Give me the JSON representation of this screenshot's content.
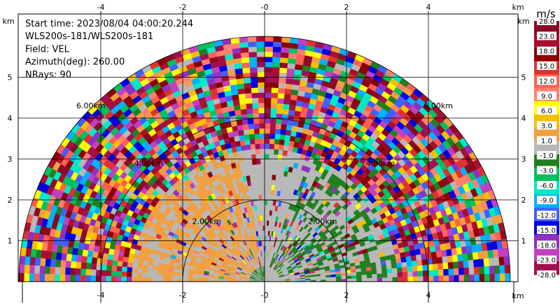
{
  "chart_data": {
    "type": "heatmap",
    "field": "VEL",
    "info_lines": [
      "Start time: 2023/08/04 04:00:20.244",
      "WLS200s-181/WLS200s-181",
      "Field: VEL",
      "Azimuth(deg): 260.00",
      "NRays: 90"
    ],
    "x_unit": "km",
    "y_unit": "km",
    "xlim": [
      -6,
      6
    ],
    "ylim": [
      0,
      6
    ],
    "x_ticks": [
      "-4",
      "-2",
      "-0",
      "2",
      "4"
    ],
    "x_tick_values": [
      -4,
      -2,
      0,
      2,
      4
    ],
    "y_ticks": [
      "1",
      "2",
      "3",
      "4",
      "5"
    ],
    "y_tick_values": [
      1,
      2,
      3,
      4,
      5
    ],
    "range_rings_km": [
      2,
      4,
      6
    ],
    "ring_labels": [
      "2.00km",
      "4.00km",
      "6.00km"
    ],
    "colorbar": {
      "unit": "m/s",
      "tick_labels": [
        "28.0",
        "23.0",
        "18.0",
        "15.0",
        "12.0",
        "9.0",
        "6.0",
        "3.0",
        "1.0",
        "-1.0",
        "-3.0",
        "-6.0",
        "-9.0",
        "-12.0",
        "-15.0",
        "-18.0",
        "-23.0",
        "-28.0"
      ],
      "colors": [
        "#8b0a26",
        "#a80f2e",
        "#8b0000",
        "#e03030",
        "#ff6050",
        "#ff8070",
        "#ffff00",
        "#f5c000",
        "#f0a040",
        "#b8b8b8",
        "#208020",
        "#00c060",
        "#00e8c8",
        "#00b0ff",
        "#4060ff",
        "#0000e0",
        "#9030c0",
        "#c040c0",
        "#a01050"
      ]
    },
    "max_range_km": 6,
    "sector_deg": [
      -90,
      90
    ],
    "description_regions": [
      {
        "name": "near-left",
        "dominant": "gray/orange"
      },
      {
        "name": "near-right",
        "dominant": "gray/green"
      },
      {
        "name": "far",
        "dominant": "mixed/noise"
      }
    ]
  }
}
